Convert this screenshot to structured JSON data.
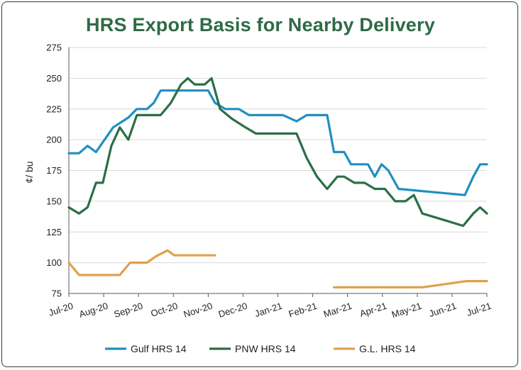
{
  "chart_data": {
    "type": "line",
    "title": "HRS Export Basis for Nearby Delivery",
    "xlabel": "",
    "ylabel": "¢/ bu",
    "ylim": [
      75,
      275
    ],
    "yticks": [
      75,
      100,
      125,
      150,
      175,
      200,
      225,
      250,
      275
    ],
    "xlim": [
      0,
      12.3
    ],
    "categories": [
      "Jul-20",
      "Aug-20",
      "Sep-20",
      "Oct-20",
      "Nov-20",
      "Dec-20",
      "Jan-21",
      "Feb-21",
      "Mar-21",
      "Apr-21",
      "May-21",
      "Jun-21",
      "Jul-21"
    ],
    "grid": "horizontal",
    "legend": "bottom",
    "series": [
      {
        "name": "Gulf HRS 14",
        "color": "#1f8fc1",
        "points": [
          [
            0,
            189
          ],
          [
            0.3,
            189
          ],
          [
            0.55,
            195
          ],
          [
            0.8,
            190
          ],
          [
            1.3,
            210
          ],
          [
            1.75,
            218
          ],
          [
            2.0,
            225
          ],
          [
            2.3,
            225
          ],
          [
            2.5,
            230
          ],
          [
            2.7,
            240
          ],
          [
            3.3,
            240
          ],
          [
            3.9,
            240
          ],
          [
            4.1,
            240
          ],
          [
            4.3,
            230
          ],
          [
            4.6,
            225
          ],
          [
            5.0,
            225
          ],
          [
            5.3,
            220
          ],
          [
            6.3,
            220
          ],
          [
            6.7,
            215
          ],
          [
            7.0,
            220
          ],
          [
            7.6,
            220
          ],
          [
            7.8,
            190
          ],
          [
            8.1,
            190
          ],
          [
            8.3,
            180
          ],
          [
            8.8,
            180
          ],
          [
            9.0,
            170
          ],
          [
            9.2,
            180
          ],
          [
            9.4,
            175
          ],
          [
            9.7,
            160
          ],
          [
            11.65,
            155
          ],
          [
            11.9,
            170
          ],
          [
            12.1,
            180
          ],
          [
            12.3,
            180
          ]
        ]
      },
      {
        "name": "PNW HRS 14",
        "color": "#2b6e46",
        "points": [
          [
            0,
            145
          ],
          [
            0.3,
            140
          ],
          [
            0.55,
            145
          ],
          [
            0.8,
            165
          ],
          [
            1.0,
            165
          ],
          [
            1.25,
            195
          ],
          [
            1.5,
            210
          ],
          [
            1.75,
            200
          ],
          [
            2.0,
            220
          ],
          [
            2.7,
            220
          ],
          [
            3.0,
            230
          ],
          [
            3.3,
            245
          ],
          [
            3.5,
            250
          ],
          [
            3.7,
            245
          ],
          [
            4.0,
            245
          ],
          [
            4.2,
            250
          ],
          [
            4.45,
            225
          ],
          [
            4.8,
            217
          ],
          [
            5.2,
            210
          ],
          [
            5.5,
            205
          ],
          [
            6.4,
            205
          ],
          [
            6.7,
            205
          ],
          [
            7.0,
            185
          ],
          [
            7.3,
            170
          ],
          [
            7.6,
            160
          ],
          [
            7.9,
            170
          ],
          [
            8.1,
            170
          ],
          [
            8.4,
            165
          ],
          [
            8.7,
            165
          ],
          [
            9.0,
            160
          ],
          [
            9.3,
            160
          ],
          [
            9.6,
            150
          ],
          [
            9.9,
            150
          ],
          [
            10.15,
            155
          ],
          [
            10.4,
            140
          ],
          [
            11.6,
            130
          ],
          [
            11.9,
            140
          ],
          [
            12.1,
            145
          ],
          [
            12.3,
            140
          ]
        ]
      },
      {
        "name": "G.L. HRS 14",
        "color": "#e0a04c",
        "segments": [
          [
            [
              0,
              100
            ],
            [
              0.3,
              90
            ],
            [
              1.5,
              90
            ],
            [
              1.8,
              100
            ],
            [
              2.3,
              100
            ],
            [
              2.55,
              105
            ],
            [
              2.9,
              110
            ],
            [
              3.1,
              106
            ],
            [
              4.0,
              106
            ],
            [
              4.3,
              106
            ]
          ],
          [
            [
              7.8,
              80
            ],
            [
              9.3,
              80
            ],
            [
              10.4,
              80
            ],
            [
              11.7,
              85
            ],
            [
              12.3,
              85
            ]
          ]
        ]
      }
    ]
  }
}
